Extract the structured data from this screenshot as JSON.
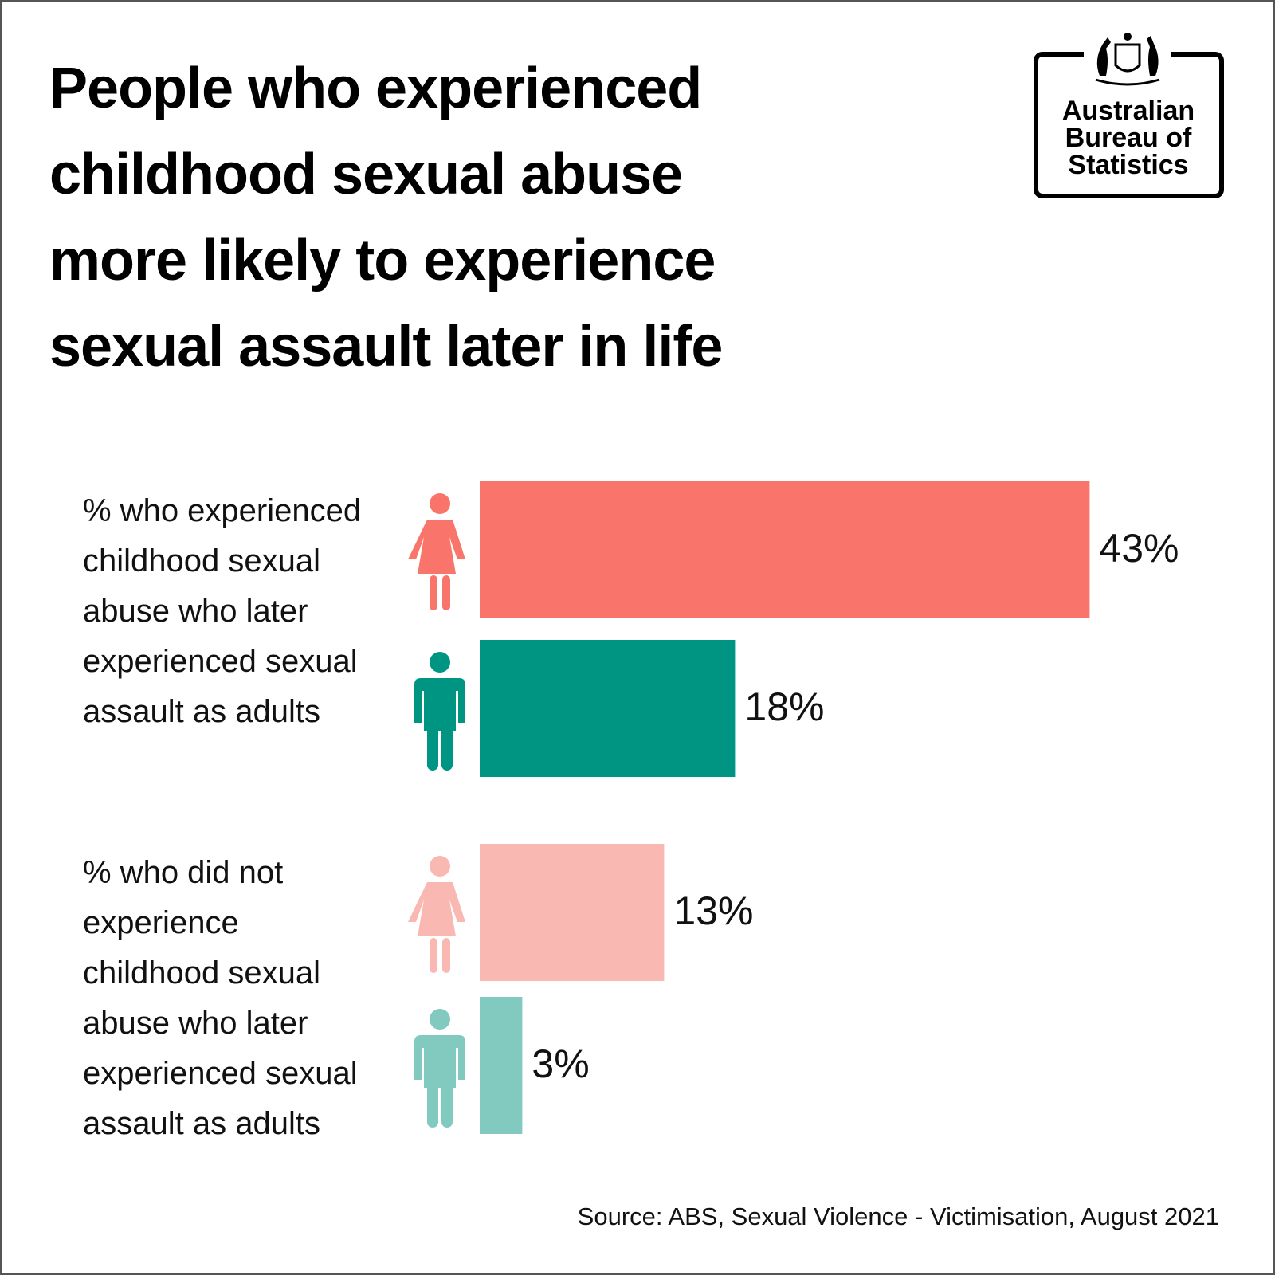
{
  "chart_data": {
    "type": "bar",
    "orientation": "horizontal",
    "title": [
      "People who experienced",
      "childhood sexual abuse",
      "more likely to experience",
      "sexual assault later in life"
    ],
    "logo": [
      "Australian",
      "Bureau of",
      "Statistics"
    ],
    "categories": [
      [
        "% who experienced",
        "childhood sexual",
        "abuse who later",
        "experienced sexual",
        "assault as adults"
      ],
      [
        "% who did not",
        "experience",
        "childhood sexual",
        "abuse who later",
        "experienced sexual",
        "assault as adults"
      ]
    ],
    "series": [
      {
        "colors": [
          "#f9756b",
          "#fab8b2"
        ],
        "values": [
          43,
          13
        ],
        "value_labels": [
          "43%",
          "13%"
        ]
      },
      {
        "colors": [
          "#009483",
          "#82c9bf"
        ],
        "values": [
          18,
          3
        ],
        "value_labels": [
          "18%",
          "3%"
        ]
      }
    ],
    "source": "Source: ABS, Sexual Violence - Victimisation, August 2021"
  }
}
